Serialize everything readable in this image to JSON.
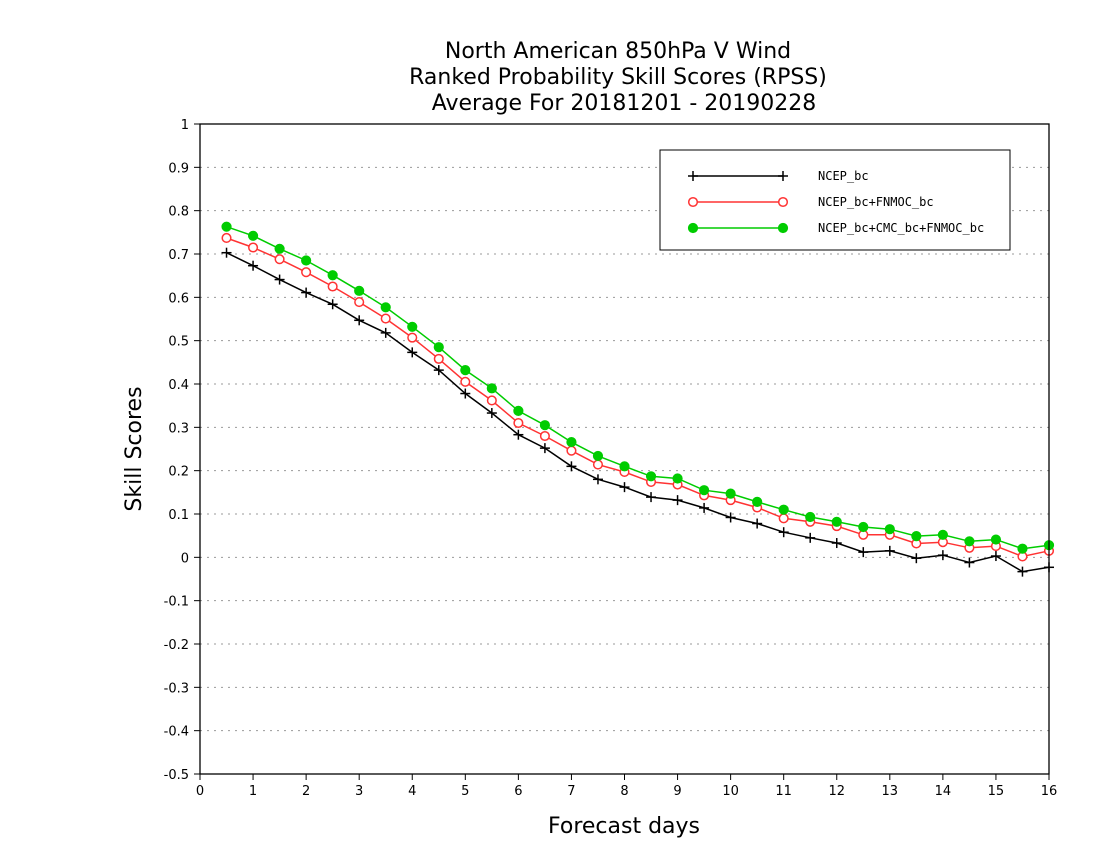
{
  "chart_data": {
    "type": "line",
    "title": [
      "North American 850hPa V Wind",
      "Ranked Probability Skill Scores (RPSS)",
      "Average For 20181201 - 20190228"
    ],
    "xlabel": "Forecast days",
    "ylabel": "Skill Scores",
    "xlim": [
      0,
      16
    ],
    "ylim": [
      -0.5,
      1
    ],
    "xticks": [
      "0",
      "1",
      "2",
      "3",
      "4",
      "5",
      "6",
      "7",
      "8",
      "9",
      "10",
      "11",
      "12",
      "13",
      "14",
      "15",
      "16"
    ],
    "yticks": [
      "1",
      "0.9",
      "0.8",
      "0.7",
      "0.6",
      "0.5",
      "0.4",
      "0.3",
      "0.2",
      "0.1",
      "0",
      "-0.1",
      "-0.2",
      "-0.3",
      "-0.4",
      "-0.5"
    ],
    "grid": true,
    "legend_position": "top-right",
    "x": [
      0.5,
      1,
      1.5,
      2,
      2.5,
      3,
      3.5,
      4,
      4.5,
      5,
      5.5,
      6,
      6.5,
      7,
      7.5,
      8,
      8.5,
      9,
      9.5,
      10,
      10.5,
      11,
      11.5,
      12,
      12.5,
      13,
      13.5,
      14,
      14.5,
      15,
      15.5,
      16
    ],
    "series": [
      {
        "name": "NCEP_bc",
        "color": "#000000",
        "marker": "plus",
        "values": [
          0.703,
          0.673,
          0.641,
          0.611,
          0.584,
          0.547,
          0.518,
          0.473,
          0.432,
          0.378,
          0.333,
          0.283,
          0.252,
          0.21,
          0.18,
          0.162,
          0.139,
          0.132,
          0.114,
          0.092,
          0.078,
          0.058,
          0.045,
          0.033,
          0.012,
          0.015,
          -0.002,
          0.005,
          -0.012,
          0.003,
          -0.033,
          -0.023
        ]
      },
      {
        "name": "NCEP_bc+FNMOC_bc",
        "color": "#ff3333",
        "marker": "open-circle",
        "values": [
          0.737,
          0.715,
          0.688,
          0.658,
          0.625,
          0.589,
          0.551,
          0.507,
          0.458,
          0.405,
          0.362,
          0.31,
          0.28,
          0.246,
          0.214,
          0.197,
          0.174,
          0.168,
          0.143,
          0.132,
          0.115,
          0.09,
          0.082,
          0.072,
          0.052,
          0.052,
          0.032,
          0.035,
          0.022,
          0.026,
          0.002,
          0.015
        ]
      },
      {
        "name": "NCEP_bc+CMC_bc+FNMOC_bc",
        "color": "#00cc00",
        "marker": "filled-circle",
        "values": [
          0.763,
          0.742,
          0.712,
          0.685,
          0.651,
          0.615,
          0.577,
          0.532,
          0.485,
          0.432,
          0.39,
          0.338,
          0.305,
          0.266,
          0.234,
          0.21,
          0.187,
          0.182,
          0.155,
          0.147,
          0.128,
          0.11,
          0.093,
          0.082,
          0.07,
          0.065,
          0.049,
          0.052,
          0.037,
          0.041,
          0.02,
          0.028
        ]
      }
    ]
  }
}
